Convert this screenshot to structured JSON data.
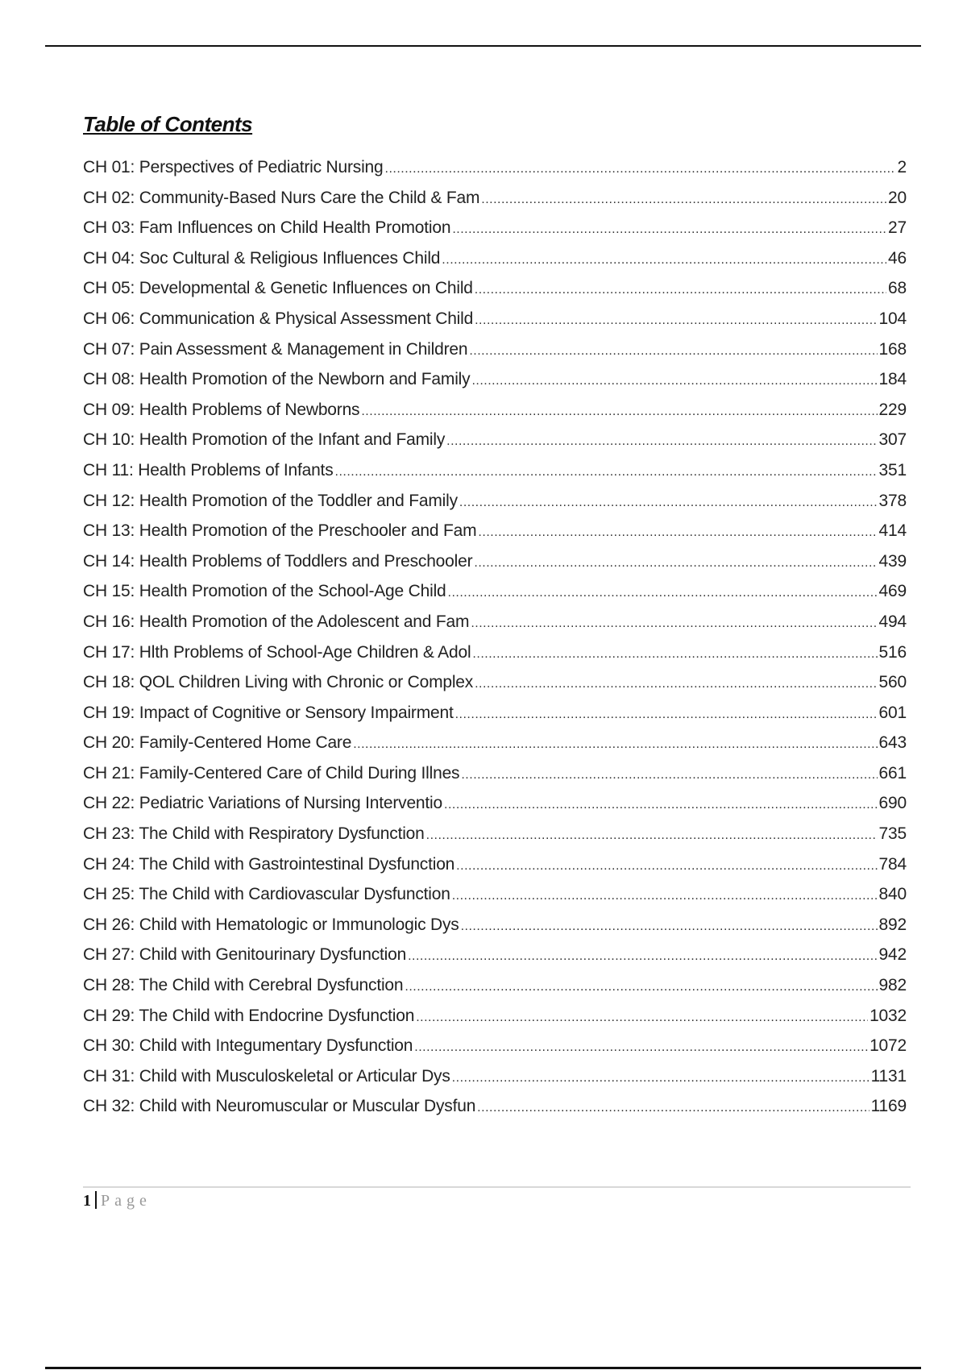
{
  "document": {
    "title": "Table of Contents",
    "entries": [
      {
        "label": "CH 01: Perspectives of Pediatric Nursing",
        "page": "2"
      },
      {
        "label": "CH 02: Community-Based Nurs Care the Child & Fam",
        "page": "20"
      },
      {
        "label": "CH 03: Fam Influences on Child Health Promotion",
        "page": "27"
      },
      {
        "label": "CH 04: Soc Cultural & Religious Influences Child",
        "page": "46"
      },
      {
        "label": "CH 05: Developmental & Genetic Influences on Child",
        "page": "68"
      },
      {
        "label": "CH 06: Communication & Physical Assessment Child",
        "page": "104"
      },
      {
        "label": "CH 07: Pain Assessment & Management in Children",
        "page": "168"
      },
      {
        "label": "CH 08: Health Promotion of the Newborn and Family",
        "page": "184"
      },
      {
        "label": "CH 09: Health Problems of Newborns",
        "page": "229"
      },
      {
        "label": "CH 10: Health Promotion of the Infant and Family",
        "page": "307"
      },
      {
        "label": "CH 11: Health Problems of Infants",
        "page": "351"
      },
      {
        "label": "CH 12: Health Promotion of the Toddler and Family",
        "page": "378"
      },
      {
        "label": "CH 13: Health Promotion of the Preschooler and Fam",
        "page": "414"
      },
      {
        "label": "CH 14: Health Problems of Toddlers and Preschooler",
        "page": "439"
      },
      {
        "label": "CH 15: Health Promotion of the School-Age Child",
        "page": "469"
      },
      {
        "label": "CH 16: Health Promotion of the Adolescent and Fam",
        "page": "494"
      },
      {
        "label": "CH 17: Hlth Problems of School-Age Children & Adol",
        "page": "516"
      },
      {
        "label": "CH 18: QOL Children Living with Chronic or Complex",
        "page": "560"
      },
      {
        "label": "CH 19: Impact of Cognitive or Sensory Impairment",
        "page": "601"
      },
      {
        "label": "CH 20: Family-Centered Home Care",
        "page": "643"
      },
      {
        "label": "CH 21: Family-Centered Care of Child During Illnes",
        "page": "661"
      },
      {
        "label": "CH 22: Pediatric Variations of Nursing Interventio",
        "page": "690"
      },
      {
        "label": "CH 23: The Child with Respiratory Dysfunction",
        "page": "735"
      },
      {
        "label": "CH 24: The Child with Gastrointestinal Dysfunction",
        "page": "784"
      },
      {
        "label": "CH 25: The Child with Cardiovascular Dysfunction",
        "page": "840"
      },
      {
        "label": "CH 26: Child with Hematologic or Immunologic Dys",
        "page": "892"
      },
      {
        "label": "CH 27: Child with Genitourinary Dysfunction",
        "page": "942"
      },
      {
        "label": "CH 28: The Child with Cerebral Dysfunction",
        "page": "982"
      },
      {
        "label": "CH 29: The Child with Endocrine Dysfunction",
        "page": "1032"
      },
      {
        "label": "CH 30: Child with Integumentary Dysfunction",
        "page": "1072"
      },
      {
        "label": "CH 31: Child with Musculoskeletal or Articular Dys",
        "page": "1131"
      },
      {
        "label": "CH 32: Child with Neuromuscular or Muscular Dysfun",
        "page": "1169"
      }
    ]
  },
  "footer": {
    "page_number": "1",
    "page_word": "Page"
  }
}
